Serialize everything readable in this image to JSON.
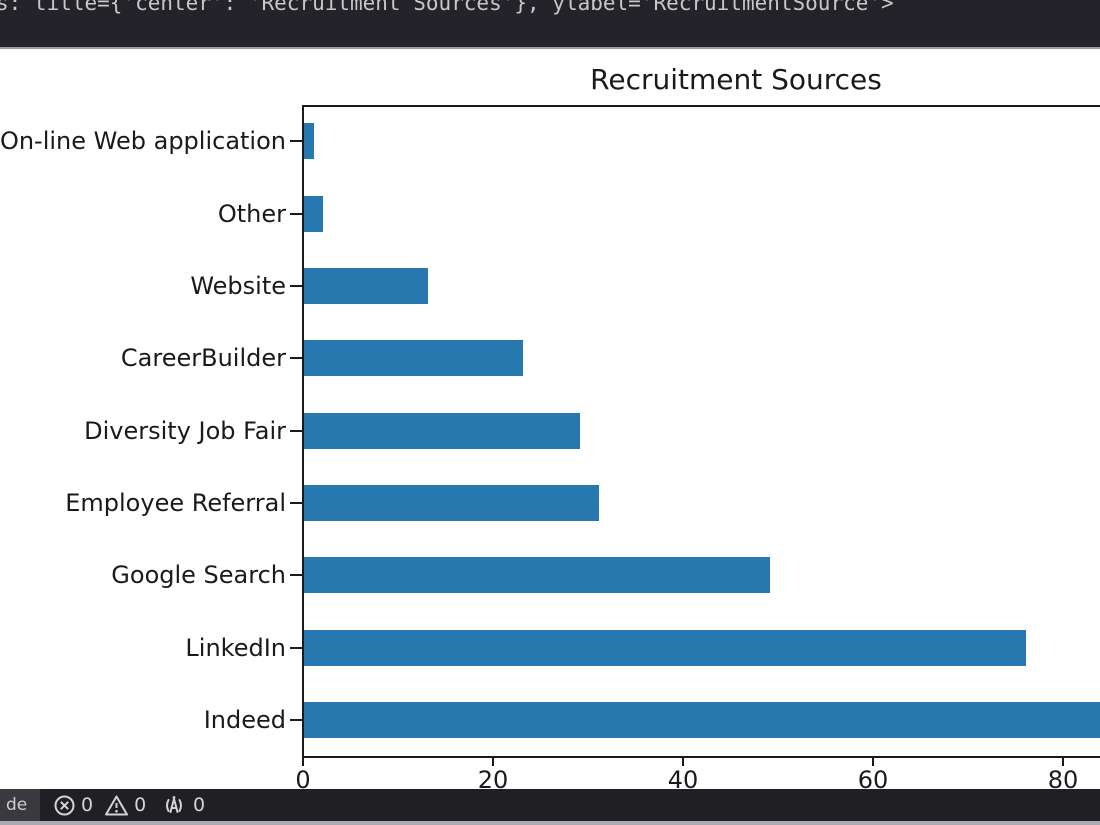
{
  "terminal": {
    "visible_text": "s: title={'center': 'Recruitment Sources'}, ylabel='RecruitmentSource'>"
  },
  "chart_data": {
    "type": "bar",
    "orientation": "horizontal",
    "title": "Recruitment Sources",
    "categories": [
      "On-line Web application",
      "Other",
      "Website",
      "CareerBuilder",
      "Diversity Job Fair",
      "Employee Referral",
      "Google Search",
      "LinkedIn",
      "Indeed"
    ],
    "values": [
      1,
      2,
      13,
      23,
      29,
      31,
      49,
      76,
      87
    ],
    "xticks": [
      0,
      20,
      40,
      60,
      80
    ],
    "xlabel": "",
    "ylabel": "RecruitmentSource",
    "xlim_visible": [
      0,
      84
    ],
    "bar_color": "#2878b0",
    "grid": false,
    "legend": false,
    "note": "Indeed bar is clipped by the right edge of the window"
  },
  "status_bar": {
    "remote_label": "de",
    "errors_count": "0",
    "warnings_count": "0",
    "broadcast_count": "0"
  },
  "colors": {
    "bar_blue": "#2878b0",
    "terminal_bg": "#242329",
    "status_bg": "#201f24",
    "axis_ink": "#1a1a1a"
  }
}
